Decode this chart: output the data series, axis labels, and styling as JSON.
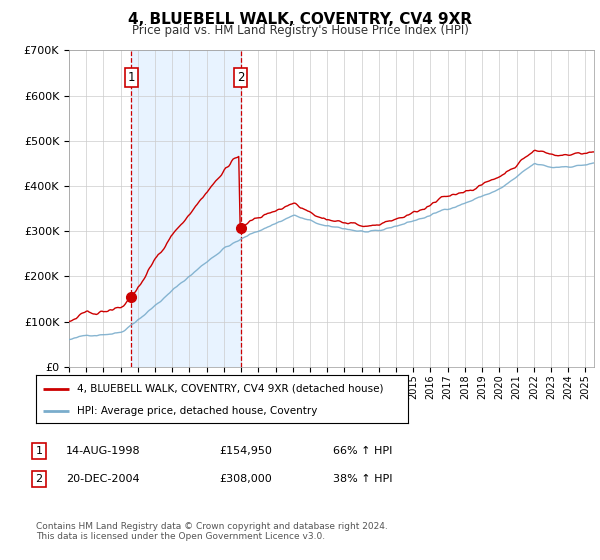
{
  "title": "4, BLUEBELL WALK, COVENTRY, CV4 9XR",
  "subtitle": "Price paid vs. HM Land Registry's House Price Index (HPI)",
  "ylim": [
    0,
    700000
  ],
  "yticks": [
    0,
    100000,
    200000,
    300000,
    400000,
    500000,
    600000,
    700000
  ],
  "ytick_labels": [
    "£0",
    "£100K",
    "£200K",
    "£300K",
    "£400K",
    "£500K",
    "£600K",
    "£700K"
  ],
  "background_color": "#ffffff",
  "plot_bg_color": "#ffffff",
  "grid_color": "#cccccc",
  "purchase1": {
    "date_num": 1998.62,
    "price": 154950,
    "label": "1"
  },
  "purchase2": {
    "date_num": 2004.97,
    "price": 308000,
    "label": "2"
  },
  "legend_label_red": "4, BLUEBELL WALK, COVENTRY, CV4 9XR (detached house)",
  "legend_label_blue": "HPI: Average price, detached house, Coventry",
  "table_rows": [
    {
      "num": "1",
      "date": "14-AUG-1998",
      "price": "£154,950",
      "change": "66% ↑ HPI"
    },
    {
      "num": "2",
      "date": "20-DEC-2004",
      "price": "£308,000",
      "change": "38% ↑ HPI"
    }
  ],
  "footer": "Contains HM Land Registry data © Crown copyright and database right 2024.\nThis data is licensed under the Open Government Licence v3.0.",
  "red_color": "#cc0000",
  "blue_color": "#7aadcc",
  "shade_color": "#ddeeff",
  "vline_color": "#cc0000",
  "xlim": [
    1995.0,
    2025.5
  ]
}
